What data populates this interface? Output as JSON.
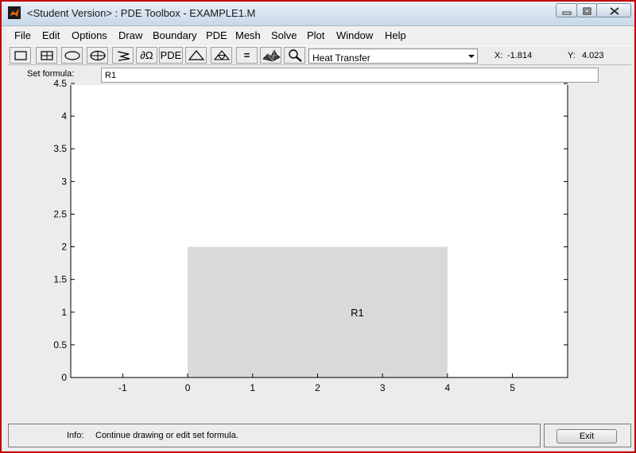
{
  "window": {
    "title": "<Student Version> : PDE Toolbox - EXAMPLE1.M"
  },
  "menu": [
    "File",
    "Edit",
    "Options",
    "Draw",
    "Boundary",
    "PDE",
    "Mesh",
    "Solve",
    "Plot",
    "Window",
    "Help"
  ],
  "toolbar": {
    "tools": [
      {
        "name": "draw-rectangle-icon"
      },
      {
        "name": "draw-rectangle-center-icon"
      },
      {
        "name": "draw-ellipse-icon"
      },
      {
        "name": "draw-ellipse-center-icon"
      },
      {
        "name": "draw-polygon-icon"
      },
      {
        "name": "boundary-mode-icon",
        "label": "∂Ω"
      },
      {
        "name": "pde-spec-icon",
        "label": "PDE"
      },
      {
        "name": "init-mesh-icon"
      },
      {
        "name": "refine-mesh-icon"
      },
      {
        "name": "solve-pde-icon",
        "label": "="
      },
      {
        "name": "plot-solution-icon"
      },
      {
        "name": "zoom-icon"
      }
    ],
    "mode": "Heat Transfer",
    "x_label": "X:",
    "x_value": "-1.814",
    "y_label": "Y:",
    "y_value": "4.023"
  },
  "formula": {
    "label": "Set formula:",
    "value": "R1"
  },
  "plot": {
    "x_ticks": [
      "-1",
      "0",
      "1",
      "2",
      "3",
      "4",
      "5"
    ],
    "y_ticks": [
      "0",
      "0.5",
      "1",
      "1.5",
      "2",
      "2.5",
      "3",
      "3.5",
      "4",
      "4.5"
    ],
    "xlim": [
      -1.8,
      5.85
    ],
    "ylim": [
      0,
      4.5
    ],
    "shapes": [
      {
        "label": "R1",
        "type": "rectangle",
        "x": [
          0,
          4
        ],
        "y": [
          0,
          2
        ],
        "fill": "#d9d9d9"
      }
    ]
  },
  "status": {
    "info_label": "Info:",
    "info_text": "Continue drawing or edit set formula.",
    "exit_label": "Exit"
  },
  "colors": {
    "window_border": "#c00000",
    "shape_fill": "#d9d9d9"
  }
}
